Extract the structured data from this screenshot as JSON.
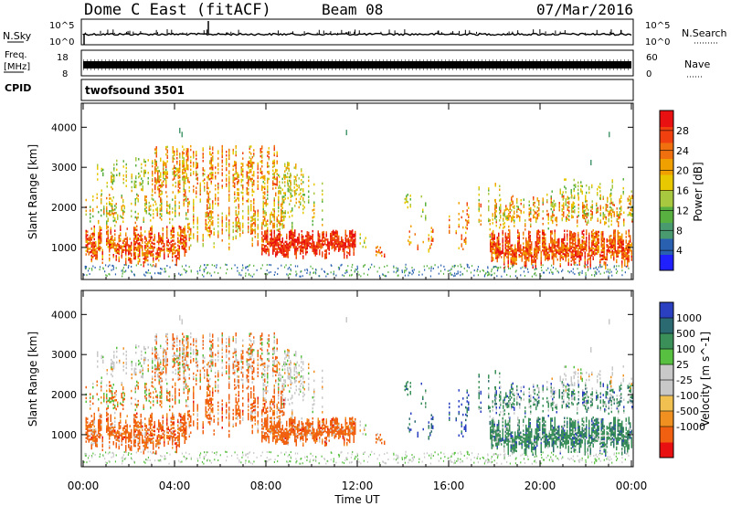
{
  "header": {
    "site": "Dome C East (fitACF)",
    "beam": "Beam 08",
    "date": "07/Mar/2016"
  },
  "strips": {
    "nsky_label": "N.Sky",
    "nsky_ticks": [
      "10^5",
      "10^0"
    ],
    "nsky_right_ticks": [
      "10^5",
      "10^0"
    ],
    "nsearch_label": "N.Search",
    "freq_label_1": "Freq.",
    "freq_label_2": "[MHz]",
    "freq_ticks": [
      "18",
      "8"
    ],
    "nave_ticks": [
      "60",
      "0"
    ],
    "nave_label": "Nave",
    "cpid_label": "CPID",
    "cpid_value": "twofsound 3501"
  },
  "colors": {
    "power": [
      "#2020ff",
      "#2a60b0",
      "#4a9a70",
      "#58b040",
      "#a8c840",
      "#e8c800",
      "#f0a000",
      "#f07010",
      "#f04010",
      "#e81010"
    ],
    "velocity": [
      "#e81010",
      "#f06010",
      "#f09020",
      "#f0c050",
      "#c8c8c8",
      "#c8c8c8",
      "#58c040",
      "#3a9058",
      "#2a6a70",
      "#2a40c0"
    ]
  },
  "chart_data": [
    {
      "type": "heatmap",
      "panel": "power",
      "ylabel": "Slant Range [km]",
      "ylim": [
        200,
        4600
      ],
      "yticks": [
        1000,
        2000,
        3000,
        4000
      ],
      "xlim_hours": [
        0,
        24
      ],
      "colorbar_label": "Power [dB]",
      "colorbar_ticks": [
        "28",
        "24",
        "20",
        "16",
        "12",
        "8",
        "4"
      ],
      "colorbar_range": [
        0,
        32
      ]
    },
    {
      "type": "heatmap",
      "panel": "velocity",
      "ylabel": "Slant Range [km]",
      "ylim": [
        200,
        4600
      ],
      "yticks": [
        1000,
        2000,
        3000,
        4000
      ],
      "xlim_hours": [
        0,
        24
      ],
      "colorbar_label": "Velocity [m s^-1]",
      "colorbar_ticks": [
        "1000",
        "500",
        "100",
        "25",
        "-25",
        "-100",
        "-500",
        "-1000"
      ]
    }
  ],
  "xaxis": {
    "ticks": [
      "00:00",
      "04:00",
      "08:00",
      "12:00",
      "16:00",
      "20:00",
      "00:00"
    ],
    "label": "Time UT"
  }
}
